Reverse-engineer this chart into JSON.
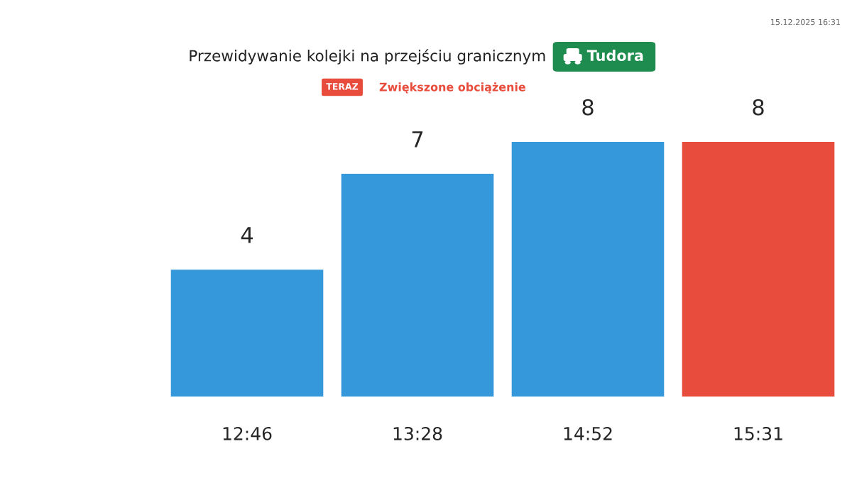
{
  "chart_data": {
    "type": "bar",
    "title": "Przewidywanie kolejki na przejściu granicznym",
    "categories": [
      "12:46",
      "13:28",
      "14:52",
      "15:31"
    ],
    "values": [
      4,
      7,
      8,
      8
    ],
    "colors": [
      "#3498db",
      "#3498db",
      "#3498db",
      "#e74c3c"
    ],
    "data_labels": true,
    "grid": false,
    "legend": false,
    "tick_labels": "x",
    "annotations": [
      "Tudora",
      "TERAZ",
      "Zwiększone obciążenie",
      "15.12.2025 16:31"
    ]
  }
}
